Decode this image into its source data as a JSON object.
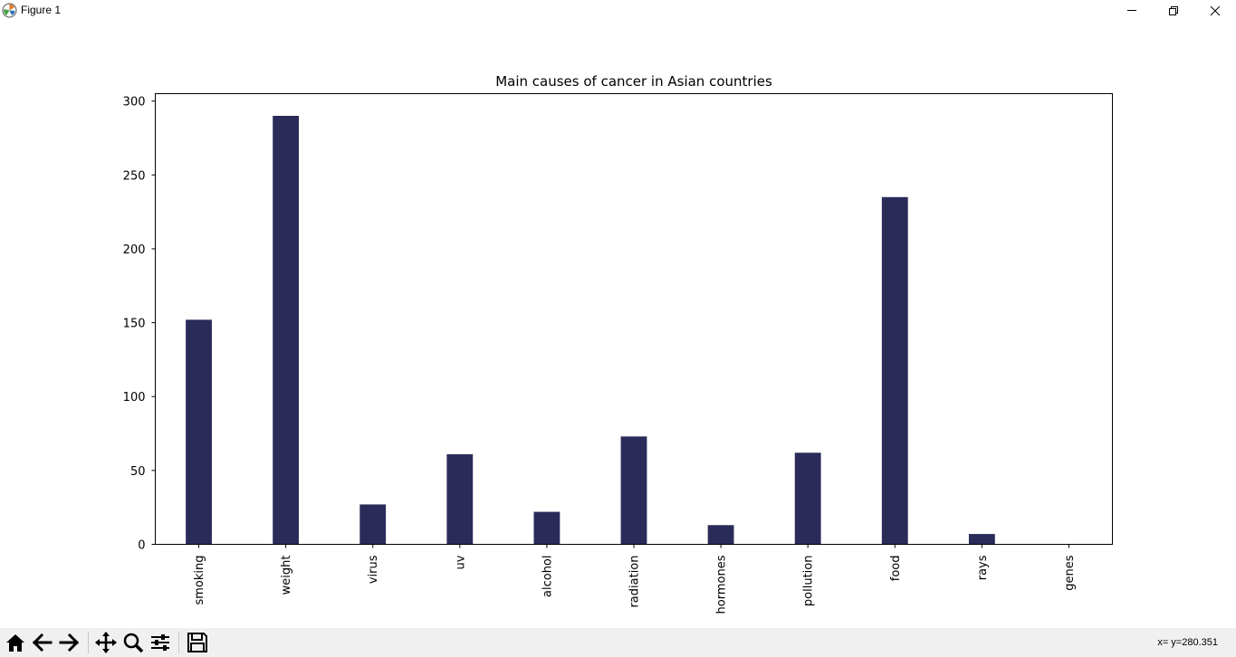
{
  "window": {
    "title": "Figure 1",
    "buttons": {
      "minimize": "minimize-icon",
      "maximize": "restore-icon",
      "close": "close-icon"
    }
  },
  "toolbar": {
    "tools": [
      "home-icon",
      "back-arrow-icon",
      "forward-arrow-icon",
      "pan-icon",
      "zoom-icon",
      "configure-subplots-icon",
      "save-icon"
    ],
    "status": "x= y=280.351"
  },
  "chart_data": {
    "type": "bar",
    "title": "Main causes of cancer in Asian countries",
    "xlabel": "",
    "ylabel": "",
    "categories": [
      "smoking",
      "weight",
      "virus",
      "uv",
      "alcohol",
      "radiation",
      "hormones",
      "pollution",
      "food",
      "rays",
      "genes"
    ],
    "values": [
      152,
      290,
      27,
      61,
      22,
      73,
      13,
      62,
      235,
      7,
      0
    ],
    "ylim": [
      0,
      305
    ],
    "yticks": [
      0,
      50,
      100,
      150,
      200,
      250,
      300
    ],
    "bar_color": "#2b2b5a",
    "grid": false,
    "x_tick_rotation": "vertical"
  }
}
